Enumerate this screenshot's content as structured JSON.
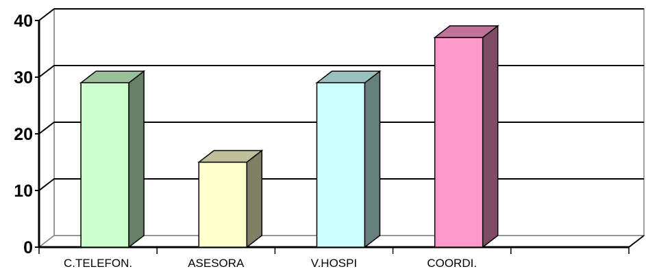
{
  "chart_data": {
    "type": "bar",
    "style": "3d-column",
    "categories": [
      "C.TELEFON.",
      "ASESORA",
      "V.HOSPI",
      "COORDI.",
      ""
    ],
    "values": [
      29,
      15,
      29,
      37,
      null
    ],
    "ylim": [
      0,
      40
    ],
    "yticks": [
      0,
      10,
      20,
      30,
      40
    ],
    "grid": true,
    "legend": "none",
    "title": "",
    "xlabel": "",
    "ylabel": "",
    "colors": {
      "front": [
        "#ccffcc",
        "#ffffcc",
        "#ccffff",
        "#ff99cc"
      ],
      "side": [
        "#667f66",
        "#7f7f66",
        "#667f7f",
        "#7f4c66"
      ],
      "top": [
        "#99bf99",
        "#bfbf99",
        "#99bfbf",
        "#bf7399"
      ]
    }
  }
}
